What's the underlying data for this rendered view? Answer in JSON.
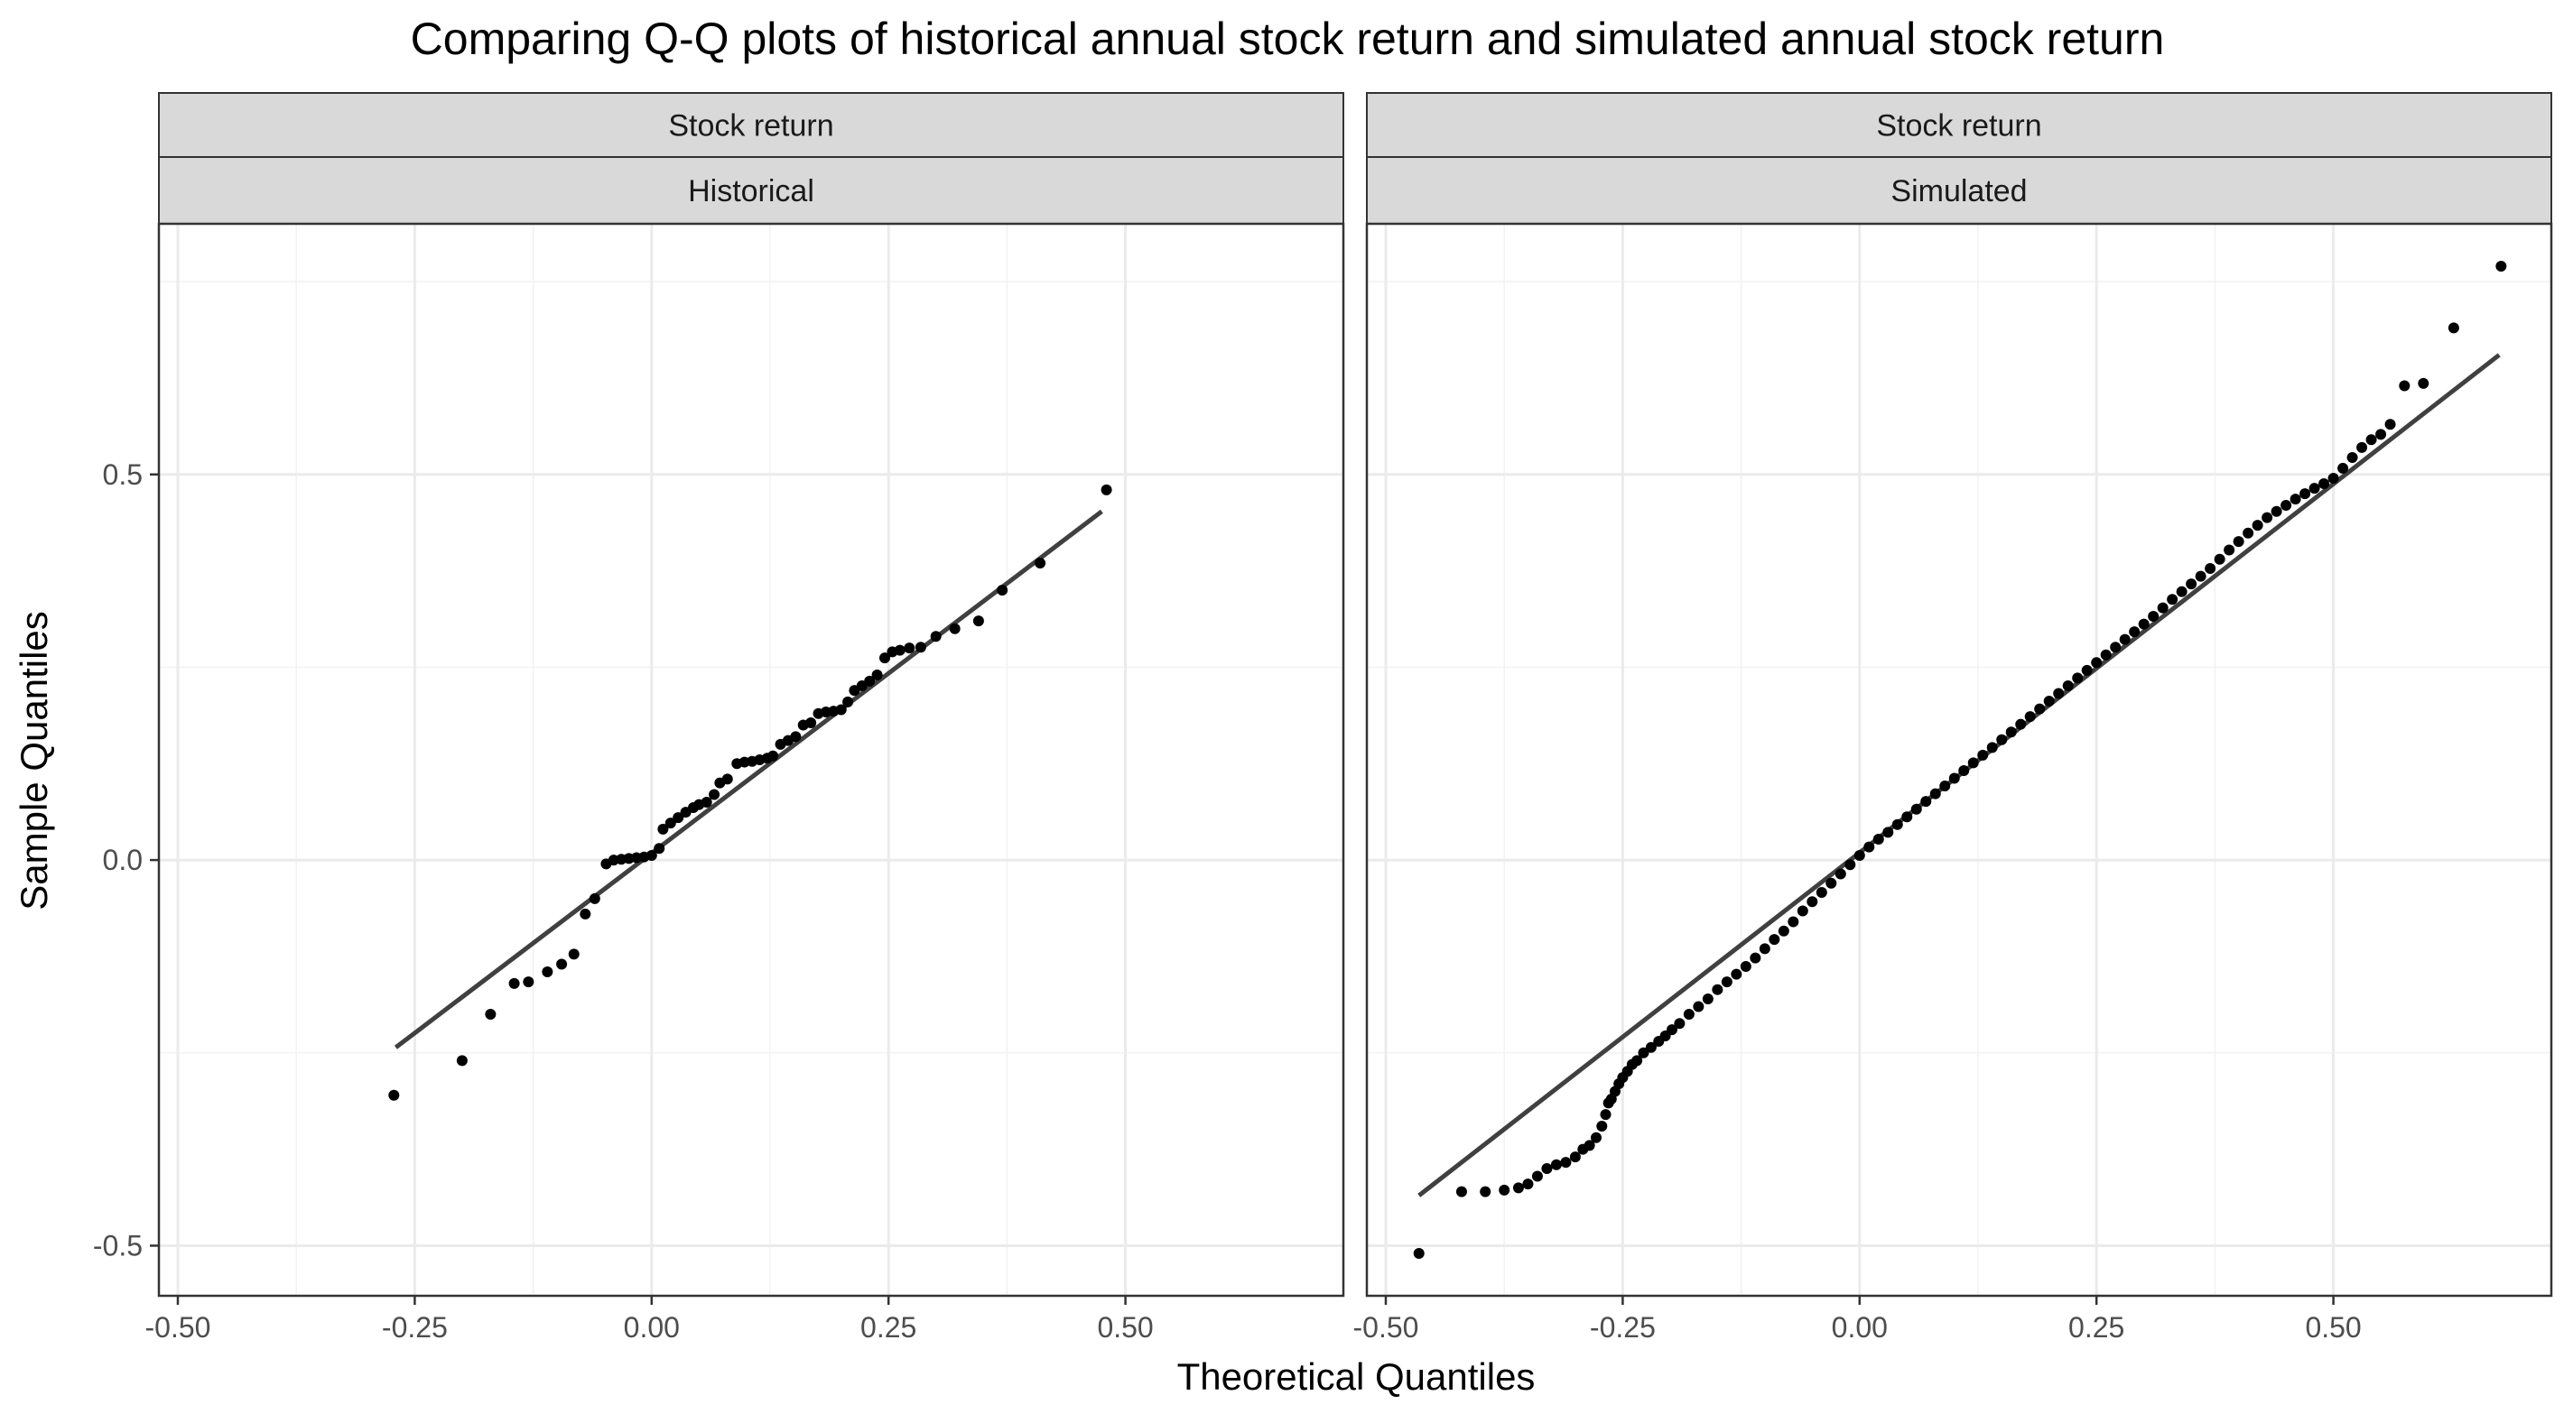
{
  "chart_data": {
    "type": "scatter",
    "title": "Comparing Q-Q plots of historical annual stock return and simulated annual stock return",
    "xlabel": "Theoretical Quantiles",
    "ylabel": "Sample Quantiles",
    "ylim": [
      -0.565,
      0.825
    ],
    "grid": true,
    "y_ticks": [
      -0.5,
      0.0,
      0.5
    ],
    "y_tick_labels": [
      "-0.5",
      "0.0",
      "0.5"
    ],
    "panels": [
      {
        "strip_top": "Stock return",
        "strip_bottom": "Historical",
        "xlim": [
          -0.52,
          0.73
        ],
        "x_ticks": [
          -0.5,
          -0.25,
          0.0,
          0.25,
          0.5
        ],
        "x_tick_labels": [
          "-0.50",
          "-0.25",
          "0.00",
          "0.25",
          "0.50"
        ],
        "line": {
          "x": [
            -0.27,
            0.475
          ],
          "y": [
            -0.243,
            0.452
          ]
        },
        "points": [
          [
            -0.272,
            -0.305
          ],
          [
            -0.2,
            -0.26
          ],
          [
            -0.17,
            -0.2
          ],
          [
            -0.145,
            -0.16
          ],
          [
            -0.13,
            -0.158
          ],
          [
            -0.11,
            -0.145
          ],
          [
            -0.095,
            -0.135
          ],
          [
            -0.082,
            -0.122
          ],
          [
            -0.07,
            -0.07
          ],
          [
            -0.06,
            -0.05
          ],
          [
            -0.048,
            -0.005
          ],
          [
            -0.04,
            0.0
          ],
          [
            -0.032,
            0.001
          ],
          [
            -0.024,
            0.002
          ],
          [
            -0.016,
            0.003
          ],
          [
            -0.008,
            0.004
          ],
          [
            0.0,
            0.006
          ],
          [
            0.008,
            0.015
          ],
          [
            0.012,
            0.04
          ],
          [
            0.02,
            0.048
          ],
          [
            0.028,
            0.055
          ],
          [
            0.036,
            0.062
          ],
          [
            0.044,
            0.068
          ],
          [
            0.05,
            0.072
          ],
          [
            0.058,
            0.075
          ],
          [
            0.066,
            0.085
          ],
          [
            0.072,
            0.1
          ],
          [
            0.08,
            0.105
          ],
          [
            0.09,
            0.125
          ],
          [
            0.098,
            0.127
          ],
          [
            0.106,
            0.128
          ],
          [
            0.114,
            0.13
          ],
          [
            0.122,
            0.132
          ],
          [
            0.128,
            0.135
          ],
          [
            0.136,
            0.15
          ],
          [
            0.144,
            0.155
          ],
          [
            0.152,
            0.16
          ],
          [
            0.16,
            0.175
          ],
          [
            0.168,
            0.178
          ],
          [
            0.176,
            0.19
          ],
          [
            0.184,
            0.192
          ],
          [
            0.192,
            0.193
          ],
          [
            0.2,
            0.195
          ],
          [
            0.207,
            0.205
          ],
          [
            0.214,
            0.22
          ],
          [
            0.222,
            0.226
          ],
          [
            0.23,
            0.232
          ],
          [
            0.238,
            0.24
          ],
          [
            0.246,
            0.262
          ],
          [
            0.254,
            0.27
          ],
          [
            0.262,
            0.272
          ],
          [
            0.272,
            0.275
          ],
          [
            0.284,
            0.276
          ],
          [
            0.3,
            0.29
          ],
          [
            0.32,
            0.3
          ],
          [
            0.345,
            0.31
          ],
          [
            0.37,
            0.35
          ],
          [
            0.41,
            0.385
          ],
          [
            0.48,
            0.48
          ]
        ]
      },
      {
        "strip_top": "Stock return",
        "strip_bottom": "Simulated",
        "xlim": [
          -0.52,
          0.73
        ],
        "x_ticks": [
          -0.5,
          -0.25,
          0.0,
          0.25,
          0.5
        ],
        "x_tick_labels": [
          "-0.50",
          "-0.25",
          "0.00",
          "0.25",
          "0.50"
        ],
        "line": {
          "x": [
            -0.465,
            0.675
          ],
          "y": [
            -0.435,
            0.655
          ]
        },
        "points": [
          [
            -0.465,
            -0.51
          ],
          [
            -0.42,
            -0.43
          ],
          [
            -0.395,
            -0.43
          ],
          [
            -0.375,
            -0.428
          ],
          [
            -0.36,
            -0.425
          ],
          [
            -0.35,
            -0.42
          ],
          [
            -0.34,
            -0.41
          ],
          [
            -0.33,
            -0.4
          ],
          [
            -0.32,
            -0.395
          ],
          [
            -0.31,
            -0.392
          ],
          [
            -0.3,
            -0.385
          ],
          [
            -0.292,
            -0.375
          ],
          [
            -0.285,
            -0.37
          ],
          [
            -0.278,
            -0.36
          ],
          [
            -0.272,
            -0.345
          ],
          [
            -0.268,
            -0.33
          ],
          [
            -0.265,
            -0.315
          ],
          [
            -0.262,
            -0.31
          ],
          [
            -0.258,
            -0.3
          ],
          [
            -0.254,
            -0.29
          ],
          [
            -0.25,
            -0.282
          ],
          [
            -0.245,
            -0.274
          ],
          [
            -0.24,
            -0.265
          ],
          [
            -0.235,
            -0.26
          ],
          [
            -0.228,
            -0.25
          ],
          [
            -0.22,
            -0.243
          ],
          [
            -0.212,
            -0.235
          ],
          [
            -0.205,
            -0.228
          ],
          [
            -0.198,
            -0.22
          ],
          [
            -0.19,
            -0.212
          ],
          [
            -0.18,
            -0.2
          ],
          [
            -0.17,
            -0.19
          ],
          [
            -0.16,
            -0.18
          ],
          [
            -0.15,
            -0.168
          ],
          [
            -0.14,
            -0.158
          ],
          [
            -0.13,
            -0.148
          ],
          [
            -0.12,
            -0.138
          ],
          [
            -0.11,
            -0.127
          ],
          [
            -0.1,
            -0.115
          ],
          [
            -0.09,
            -0.103
          ],
          [
            -0.08,
            -0.092
          ],
          [
            -0.07,
            -0.08
          ],
          [
            -0.06,
            -0.066
          ],
          [
            -0.05,
            -0.054
          ],
          [
            -0.04,
            -0.042
          ],
          [
            -0.03,
            -0.03
          ],
          [
            -0.02,
            -0.018
          ],
          [
            -0.01,
            -0.006
          ],
          [
            0.0,
            0.006
          ],
          [
            0.01,
            0.017
          ],
          [
            0.02,
            0.027
          ],
          [
            0.03,
            0.036
          ],
          [
            0.04,
            0.046
          ],
          [
            0.05,
            0.056
          ],
          [
            0.06,
            0.066
          ],
          [
            0.07,
            0.076
          ],
          [
            0.08,
            0.086
          ],
          [
            0.09,
            0.096
          ],
          [
            0.1,
            0.106
          ],
          [
            0.11,
            0.116
          ],
          [
            0.12,
            0.126
          ],
          [
            0.13,
            0.136
          ],
          [
            0.14,
            0.146
          ],
          [
            0.15,
            0.156
          ],
          [
            0.16,
            0.166
          ],
          [
            0.17,
            0.176
          ],
          [
            0.18,
            0.186
          ],
          [
            0.19,
            0.196
          ],
          [
            0.2,
            0.206
          ],
          [
            0.21,
            0.216
          ],
          [
            0.22,
            0.226
          ],
          [
            0.23,
            0.236
          ],
          [
            0.24,
            0.246
          ],
          [
            0.25,
            0.256
          ],
          [
            0.26,
            0.266
          ],
          [
            0.27,
            0.276
          ],
          [
            0.28,
            0.286
          ],
          [
            0.29,
            0.296
          ],
          [
            0.3,
            0.306
          ],
          [
            0.31,
            0.316
          ],
          [
            0.32,
            0.327
          ],
          [
            0.33,
            0.338
          ],
          [
            0.34,
            0.348
          ],
          [
            0.35,
            0.358
          ],
          [
            0.36,
            0.368
          ],
          [
            0.37,
            0.378
          ],
          [
            0.38,
            0.39
          ],
          [
            0.39,
            0.402
          ],
          [
            0.4,
            0.413
          ],
          [
            0.41,
            0.424
          ],
          [
            0.42,
            0.434
          ],
          [
            0.43,
            0.444
          ],
          [
            0.44,
            0.452
          ],
          [
            0.45,
            0.46
          ],
          [
            0.46,
            0.468
          ],
          [
            0.47,
            0.475
          ],
          [
            0.48,
            0.482
          ],
          [
            0.49,
            0.488
          ],
          [
            0.5,
            0.495
          ],
          [
            0.51,
            0.508
          ],
          [
            0.52,
            0.522
          ],
          [
            0.53,
            0.535
          ],
          [
            0.54,
            0.545
          ],
          [
            0.55,
            0.552
          ],
          [
            0.56,
            0.565
          ],
          [
            0.575,
            0.615
          ],
          [
            0.595,
            0.618
          ],
          [
            0.627,
            0.69
          ],
          [
            0.677,
            0.77
          ]
        ]
      }
    ]
  }
}
